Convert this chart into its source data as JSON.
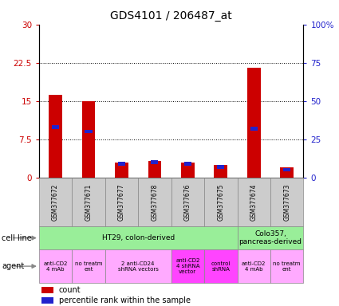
{
  "title": "GDS4101 / 206487_at",
  "samples": [
    "GSM377672",
    "GSM377671",
    "GSM377677",
    "GSM377678",
    "GSM377676",
    "GSM377675",
    "GSM377674",
    "GSM377673"
  ],
  "count_values": [
    16.2,
    15.0,
    3.0,
    3.2,
    3.0,
    2.5,
    21.5,
    2.0
  ],
  "percentile_values": [
    33,
    30,
    9,
    10,
    9,
    7,
    32,
    5
  ],
  "ylim_left": [
    0,
    30
  ],
  "ylim_right": [
    0,
    100
  ],
  "yticks_left": [
    0,
    7.5,
    15,
    22.5,
    30
  ],
  "ytick_labels_left": [
    "0",
    "7.5",
    "15",
    "22.5",
    "30"
  ],
  "yticks_right": [
    0,
    25,
    50,
    75,
    100
  ],
  "ytick_labels_right": [
    "0",
    "25",
    "50",
    "75",
    "100%"
  ],
  "bar_color": "#cc0000",
  "percentile_color": "#2222cc",
  "grid_yticks": [
    7.5,
    15,
    22.5
  ],
  "cell_line_data": [
    {
      "label": "HT29, colon-derived",
      "start": 0,
      "end": 6,
      "color": "#99ee99"
    },
    {
      "label": "Colo357,\npancreas-derived",
      "start": 6,
      "end": 8,
      "color": "#99ee99"
    }
  ],
  "agent_data": [
    {
      "label": "anti-CD2\n4 mAb",
      "start": 0,
      "end": 1,
      "color": "#ffaaff"
    },
    {
      "label": "no treatm\nent",
      "start": 1,
      "end": 2,
      "color": "#ffaaff"
    },
    {
      "label": "2 anti-CD24\nshRNA vectors",
      "start": 2,
      "end": 4,
      "color": "#ffaaff"
    },
    {
      "label": "anti-CD2\n4 shRNA\nvector",
      "start": 4,
      "end": 5,
      "color": "#ff44ff"
    },
    {
      "label": "control\nshRNA",
      "start": 5,
      "end": 6,
      "color": "#ff44ff"
    },
    {
      "label": "anti-CD2\n4 mAb",
      "start": 6,
      "end": 7,
      "color": "#ffaaff"
    },
    {
      "label": "no treatm\nent",
      "start": 7,
      "end": 8,
      "color": "#ffaaff"
    }
  ]
}
